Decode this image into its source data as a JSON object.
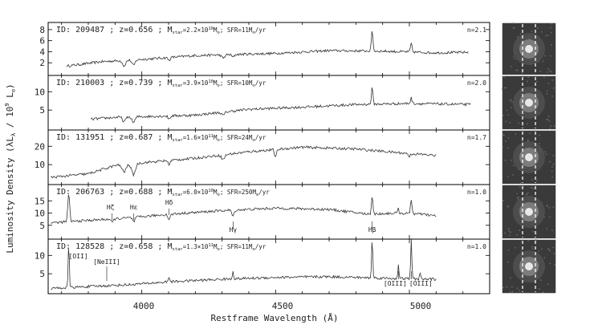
{
  "figure": {
    "xlabel": "Restframe Wavelength (Å)",
    "ylabel_main": "Luminosity Density (λL",
    "ylabel_sub": "λ",
    "ylabel_mid": " / 10",
    "ylabel_exp": "9",
    "ylabel_end": " L",
    "ylabel_sun": "⊙",
    "ylabel_close": ")",
    "x_tick_labels": [
      "4000",
      "4500",
      "5000"
    ]
  },
  "chart_data": {
    "type": "line",
    "xlabel": "Restframe Wavelength (Å)",
    "ylabel": "Luminosity Density (λLλ / 10^9 L⊙)",
    "xlim": [
      3650,
      5300
    ],
    "x_ticks": [
      4000,
      4500,
      5000
    ],
    "panels": [
      {
        "id_text": "ID: 209487 ; z=0.656 ; M",
        "mass_sub": "star",
        "mass_val": "=2.2×10",
        "mass_exp": "10",
        "mass_unit": "M",
        "mass_sun": "⊙",
        "sfr_text": "; SFR=11M",
        "sfr_sun": "⊙",
        "sfr_unit": "/yr",
        "n_label": "n=2.1",
        "ylim": [
          0,
          9
        ],
        "y_ticks": [
          2,
          4,
          6,
          8
        ],
        "x_range": [
          3720,
          5220
        ],
        "base": [
          [
            3720,
            1.4
          ],
          [
            3850,
            2.2
          ],
          [
            4000,
            2.6
          ],
          [
            4200,
            3.3
          ],
          [
            4500,
            3.7
          ],
          [
            4700,
            4.2
          ],
          [
            4900,
            4.1
          ],
          [
            5100,
            3.8
          ],
          [
            5220,
            3.9
          ]
        ],
        "features": [
          [
            3934,
            -1.0,
            8
          ],
          [
            3969,
            -1.0,
            8
          ],
          [
            4102,
            -0.5,
            6
          ],
          [
            4304,
            -0.6,
            8
          ],
          [
            4341,
            -0.5,
            6
          ],
          [
            4861,
            3.8,
            4
          ],
          [
            5007,
            1.6,
            4
          ]
        ]
      },
      {
        "id_text": "ID: 210003 ; z=0.739 ; M",
        "mass_sub": "star",
        "mass_val": "=3.9×10",
        "mass_exp": "10",
        "mass_unit": "M",
        "mass_sun": "⊙",
        "sfr_text": "; SFR=10M",
        "sfr_sun": "⊙",
        "sfr_unit": "/yr",
        "n_label": "n=2.0",
        "ylim": [
          0,
          14
        ],
        "y_ticks": [
          5,
          10
        ],
        "x_range": [
          3810,
          5230
        ],
        "base": [
          [
            3810,
            2.5
          ],
          [
            3900,
            3.0
          ],
          [
            4000,
            3.2
          ],
          [
            4200,
            3.6
          ],
          [
            4400,
            5.2
          ],
          [
            4600,
            5.8
          ],
          [
            4800,
            6.5
          ],
          [
            5000,
            6.8
          ],
          [
            5230,
            6.5
          ]
        ],
        "features": [
          [
            3934,
            -1.2,
            8
          ],
          [
            3969,
            -1.5,
            8
          ],
          [
            4102,
            -0.8,
            6
          ],
          [
            4304,
            -0.9,
            8
          ],
          [
            4861,
            4.5,
            4
          ],
          [
            5007,
            1.5,
            4
          ]
        ]
      },
      {
        "id_text": "ID: 131951 ; z=0.687 ; M",
        "mass_sub": "star",
        "mass_val": "=1.6×10",
        "mass_exp": "11",
        "mass_unit": "M",
        "mass_sun": "⊙",
        "sfr_text": "; SFR=24M",
        "sfr_sun": "⊙",
        "sfr_unit": "/yr",
        "n_label": "n=1.7",
        "ylim": [
          0,
          28
        ],
        "y_ticks": [
          10,
          20
        ],
        "x_range": [
          3660,
          5100
        ],
        "base": [
          [
            3660,
            3.0
          ],
          [
            3800,
            5.0
          ],
          [
            3900,
            9.5
          ],
          [
            4000,
            11.0
          ],
          [
            4200,
            13.5
          ],
          [
            4400,
            17.0
          ],
          [
            4600,
            19.5
          ],
          [
            4800,
            18.5
          ],
          [
            5000,
            16.0
          ],
          [
            5100,
            15.0
          ]
        ],
        "features": [
          [
            3934,
            -4.0,
            10
          ],
          [
            3969,
            -6.0,
            10
          ],
          [
            4102,
            -2.0,
            6
          ],
          [
            4304,
            -2.5,
            8
          ],
          [
            4500,
            -4.5,
            5
          ],
          [
            5000,
            -2.0,
            4
          ]
        ]
      },
      {
        "id_text": "ID: 206763 ; z=0.688 ; M",
        "mass_sub": "star",
        "mass_val": "=6.0×10",
        "mass_exp": "10",
        "mass_unit": "M",
        "mass_sun": "⊙",
        "sfr_text": "; SFR=250M",
        "sfr_sun": "⊙",
        "sfr_unit": "/yr",
        "n_label": "n=1.0",
        "ylim": [
          0,
          21
        ],
        "y_ticks": [
          5,
          10,
          15
        ],
        "x_range": [
          3660,
          5100
        ],
        "base": [
          [
            3660,
            6.0
          ],
          [
            3800,
            7.0
          ],
          [
            3950,
            8.0
          ],
          [
            4100,
            9.5
          ],
          [
            4300,
            11.0
          ],
          [
            4500,
            12.0
          ],
          [
            4700,
            11.5
          ],
          [
            4850,
            9.5
          ],
          [
            4950,
            10.0
          ],
          [
            5050,
            9.5
          ],
          [
            5100,
            8.8
          ]
        ],
        "features": [
          [
            3727,
            11.0,
            5
          ],
          [
            3889,
            -1.5,
            6
          ],
          [
            3970,
            -1.8,
            6
          ],
          [
            4102,
            -2.0,
            6
          ],
          [
            4341,
            -2.5,
            6
          ],
          [
            4861,
            7.5,
            4
          ],
          [
            4959,
            2.0,
            3
          ],
          [
            5007,
            6.0,
            4
          ]
        ]
      },
      {
        "id_text": "ID: 128528 ; z=0.658 ; M",
        "mass_sub": "star",
        "mass_val": "=1.3×10",
        "mass_exp": "11",
        "mass_unit": "M",
        "mass_sun": "⊙",
        "sfr_text": "; SFR=11M",
        "sfr_sun": "⊙",
        "sfr_unit": "/yr",
        "n_label": "n=1.0",
        "ylim": [
          0,
          14
        ],
        "y_ticks": [
          5,
          10
        ],
        "x_range": [
          3660,
          5100
        ],
        "base": [
          [
            3660,
            1.0
          ],
          [
            3800,
            1.5
          ],
          [
            3950,
            2.0
          ],
          [
            4100,
            2.8
          ],
          [
            4300,
            3.5
          ],
          [
            4500,
            4.0
          ],
          [
            4700,
            4.2
          ],
          [
            4900,
            3.8
          ],
          [
            5100,
            3.5
          ]
        ],
        "features": [
          [
            3727,
            12.0,
            3
          ],
          [
            4102,
            1.5,
            3
          ],
          [
            4341,
            2.2,
            3
          ],
          [
            4861,
            11.0,
            3
          ],
          [
            4959,
            3.5,
            3
          ],
          [
            5007,
            10.5,
            3
          ],
          [
            5040,
            1.5,
            3
          ]
        ]
      }
    ],
    "annotations": [
      {
        "panel": 3,
        "label": "Hζ",
        "x": 3889
      },
      {
        "panel": 3,
        "label": "Hε",
        "x": 3970
      },
      {
        "panel": 3,
        "label": "Hδ",
        "x": 4102
      },
      {
        "panel": 3,
        "label": "Hγ",
        "x": 4341
      },
      {
        "panel": 3,
        "label": "Hβ",
        "x": 4861
      },
      {
        "panel": 4,
        "label": "[OII]",
        "x": 3727
      },
      {
        "panel": 4,
        "label": "[NeIII]",
        "x": 3869
      },
      {
        "panel": 4,
        "label": "[OIII]",
        "x": 4959
      },
      {
        "panel": 4,
        "label": "[OIII]",
        "x": 5007
      }
    ]
  }
}
